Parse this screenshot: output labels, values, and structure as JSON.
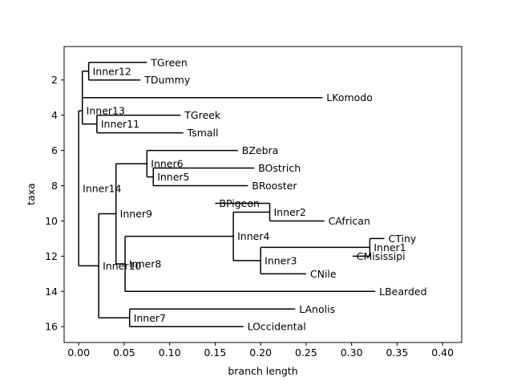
{
  "chart_data": {
    "type": "tree",
    "title": "",
    "xlabel": "branch length",
    "ylabel": "taxa",
    "xlim": [
      -0.016,
      0.421
    ],
    "ylim": [
      16.9,
      0.1
    ],
    "xticks": [
      "0.00",
      "0.05",
      "0.10",
      "0.15",
      "0.20",
      "0.25",
      "0.30",
      "0.35",
      "0.40"
    ],
    "yticks": [
      "2",
      "4",
      "6",
      "8",
      "10",
      "12",
      "14",
      "16"
    ],
    "nodes": [
      {
        "name": "TGreen",
        "x": 0.075,
        "y": 1,
        "label": " TGreen"
      },
      {
        "name": "TDummy",
        "x": 0.068,
        "y": 2,
        "label": " TDummy"
      },
      {
        "name": "LKomodo",
        "x": 0.268,
        "y": 3,
        "label": " LKomodo"
      },
      {
        "name": "TGreek",
        "x": 0.112,
        "y": 4,
        "label": " TGreek"
      },
      {
        "name": "Tsmall",
        "x": 0.115,
        "y": 5,
        "label": " Tsmall"
      },
      {
        "name": "BZebra",
        "x": 0.175,
        "y": 6,
        "label": " BZebra"
      },
      {
        "name": "BOstrich",
        "x": 0.193,
        "y": 7,
        "label": " BOstrich"
      },
      {
        "name": "BRooster",
        "x": 0.186,
        "y": 8,
        "label": " BRooster"
      },
      {
        "name": "BPigeon",
        "x": 0.15,
        "y": 9,
        "label": " BPigeon"
      },
      {
        "name": "CAfrican",
        "x": 0.27,
        "y": 10,
        "label": " CAfrican"
      },
      {
        "name": "CTiny",
        "x": 0.336,
        "y": 11,
        "label": " CTiny"
      },
      {
        "name": "CMisissipi",
        "x": 0.301,
        "y": 12,
        "label": " CMisissipi"
      },
      {
        "name": "CNile",
        "x": 0.25,
        "y": 13,
        "label": " CNile"
      },
      {
        "name": "LBearded",
        "x": 0.326,
        "y": 14,
        "label": " LBearded"
      },
      {
        "name": "LAnolis",
        "x": 0.238,
        "y": 15,
        "label": " LAnolis"
      },
      {
        "name": "LOccidental",
        "x": 0.181,
        "y": 16,
        "label": " LOccidental"
      },
      {
        "name": "Inner12",
        "x": 0.011,
        "y": 1.5,
        "label": " Inner12"
      },
      {
        "name": "Inner11",
        "x": 0.02,
        "y": 4.5,
        "label": " Inner11"
      },
      {
        "name": "Inner13",
        "x": 0.004,
        "y": 3.75,
        "label": " Inner13"
      },
      {
        "name": "Inner5",
        "x": 0.082,
        "y": 7.5,
        "label": " Inner5"
      },
      {
        "name": "Inner6",
        "x": 0.075,
        "y": 6.75,
        "label": " Inner6"
      },
      {
        "name": "Inner2",
        "x": 0.21,
        "y": 9.5,
        "label": " Inner2"
      },
      {
        "name": "Inner1",
        "x": 0.32,
        "y": 11.5,
        "label": " Inner1"
      },
      {
        "name": "Inner3",
        "x": 0.2,
        "y": 12.25,
        "label": " Inner3"
      },
      {
        "name": "Inner4",
        "x": 0.17,
        "y": 10.875,
        "label": " Inner4"
      },
      {
        "name": "Inner8",
        "x": 0.051,
        "y": 12.4375,
        "label": " Inner8"
      },
      {
        "name": "Inner9",
        "x": 0.041,
        "y": 9.59375,
        "label": " Inner9"
      },
      {
        "name": "Inner7",
        "x": 0.056,
        "y": 15.5,
        "label": " Inner7"
      },
      {
        "name": "Inner10",
        "x": 0.022,
        "y": 12.546875,
        "label": " Inner10"
      },
      {
        "name": "Inner14",
        "x": 0.0,
        "y": 8.1484375,
        "label": " Inner14"
      }
    ],
    "edges": [
      [
        "Inner12",
        "TGreen"
      ],
      [
        "Inner12",
        "TDummy"
      ],
      [
        "Inner11",
        "TGreek"
      ],
      [
        "Inner11",
        "Tsmall"
      ],
      [
        "Inner13",
        "Inner12"
      ],
      [
        "Inner13",
        "LKomodo"
      ],
      [
        "Inner13",
        "Inner11"
      ],
      [
        "Inner5",
        "BOstrich"
      ],
      [
        "Inner5",
        "BRooster"
      ],
      [
        "Inner6",
        "BZebra"
      ],
      [
        "Inner6",
        "Inner5"
      ],
      [
        "Inner2",
        "BPigeon"
      ],
      [
        "Inner2",
        "CAfrican"
      ],
      [
        "Inner1",
        "CTiny"
      ],
      [
        "Inner1",
        "CMisissipi"
      ],
      [
        "Inner3",
        "Inner1"
      ],
      [
        "Inner3",
        "CNile"
      ],
      [
        "Inner4",
        "Inner2"
      ],
      [
        "Inner4",
        "Inner3"
      ],
      [
        "Inner8",
        "Inner4"
      ],
      [
        "Inner8",
        "LBearded"
      ],
      [
        "Inner9",
        "Inner6"
      ],
      [
        "Inner9",
        "Inner8"
      ],
      [
        "Inner7",
        "LAnolis"
      ],
      [
        "Inner7",
        "LOccidental"
      ],
      [
        "Inner10",
        "Inner9"
      ],
      [
        "Inner10",
        "Inner7"
      ],
      [
        "Inner14",
        "Inner13"
      ],
      [
        "Inner14",
        "Inner10"
      ]
    ],
    "grid": false,
    "legend": "none"
  }
}
